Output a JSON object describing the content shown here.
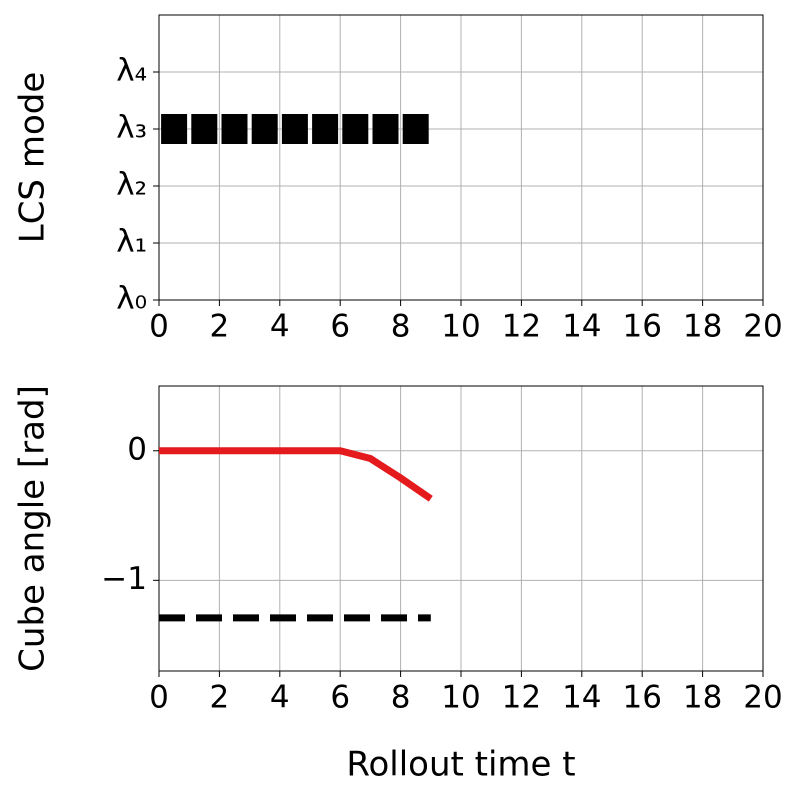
{
  "chart_data": [
    {
      "type": "scatter",
      "ylabel": "LCS mode",
      "x": [
        0.5,
        1.5,
        2.5,
        3.5,
        4.5,
        5.5,
        6.5,
        7.5,
        8.5
      ],
      "values": [
        3,
        3,
        3,
        3,
        3,
        3,
        3,
        3,
        3
      ],
      "color": "#000000",
      "marker": "square",
      "xlim": [
        0,
        20
      ],
      "xticks": [
        0,
        2,
        4,
        6,
        8,
        10,
        12,
        14,
        16,
        18,
        20
      ],
      "ylim": [
        0,
        5
      ],
      "yticks": [
        {
          "value": 0,
          "label": "λ₀"
        },
        {
          "value": 1,
          "label": "λ₁"
        },
        {
          "value": 2,
          "label": "λ₂"
        },
        {
          "value": 3,
          "label": "λ₃"
        },
        {
          "value": 4,
          "label": "λ₄"
        }
      ],
      "grid": true
    },
    {
      "type": "line",
      "ylabel": "Cube angle [rad]",
      "xlabel": "Rollout time t",
      "x": [
        0,
        1,
        2,
        3,
        4,
        5,
        6,
        7,
        8,
        9
      ],
      "series": [
        {
          "color": "#e41a1c",
          "dashed": false,
          "values": [
            0,
            0,
            0,
            0,
            0,
            0,
            0,
            -0.06,
            -0.21,
            -0.37
          ]
        },
        {
          "color": "#000000",
          "dashed": true,
          "values": [
            -1.29,
            -1.29,
            -1.29,
            -1.29,
            -1.29,
            -1.29,
            -1.29,
            -1.29,
            -1.29,
            -1.29
          ]
        }
      ],
      "xlim": [
        0,
        20
      ],
      "xticks": [
        0,
        2,
        4,
        6,
        8,
        10,
        12,
        14,
        16,
        18,
        20
      ],
      "ylim": [
        -1.7,
        0.5
      ],
      "yticks": [
        {
          "value": -1,
          "label": "−1"
        },
        0
      ],
      "grid": true
    }
  ]
}
